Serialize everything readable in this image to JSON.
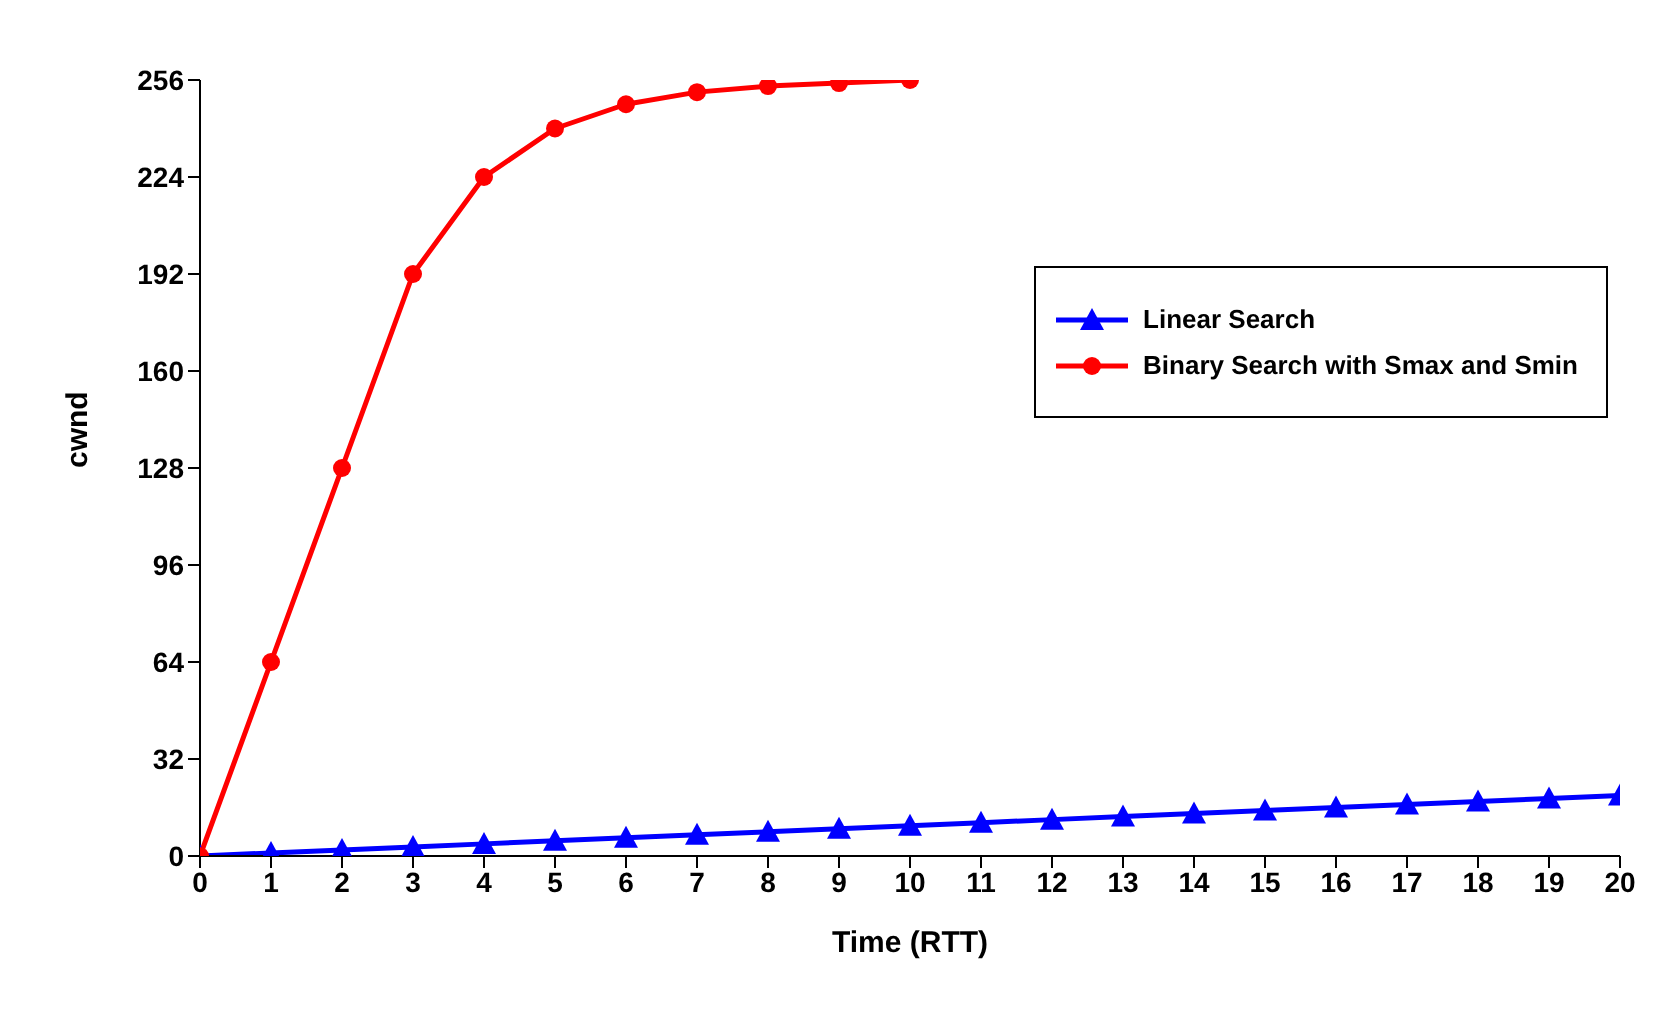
{
  "chart_data": {
    "type": "line",
    "xlabel": "Time (RTT)",
    "ylabel": "cwnd",
    "x": [
      0,
      1,
      2,
      3,
      4,
      5,
      6,
      7,
      8,
      9,
      10,
      11,
      12,
      13,
      14,
      15,
      16,
      17,
      18,
      19,
      20
    ],
    "series": [
      {
        "name": "Linear Search",
        "color": "#0000ff",
        "marker": "triangle",
        "values": [
          0,
          1,
          2,
          3,
          4,
          5,
          6,
          7,
          8,
          9,
          10,
          11,
          12,
          13,
          14,
          15,
          16,
          17,
          18,
          19,
          20
        ]
      },
      {
        "name": "Binary Search with Smax and Smin",
        "color": "#ff0000",
        "marker": "circle",
        "values": [
          0,
          64,
          128,
          192,
          224,
          240,
          248,
          252,
          254,
          255,
          256,
          null,
          null,
          null,
          null,
          null,
          null,
          null,
          null,
          null,
          null
        ]
      }
    ],
    "xlim": [
      0,
      20
    ],
    "xticks": [
      0,
      1,
      2,
      3,
      4,
      5,
      6,
      7,
      8,
      9,
      10,
      11,
      12,
      13,
      14,
      15,
      16,
      17,
      18,
      19,
      20
    ],
    "ylim": [
      0,
      256
    ],
    "yticks": [
      0,
      32,
      64,
      96,
      128,
      160,
      192,
      224,
      256
    ],
    "grid": false,
    "legend": "right",
    "line_style": "solid"
  }
}
